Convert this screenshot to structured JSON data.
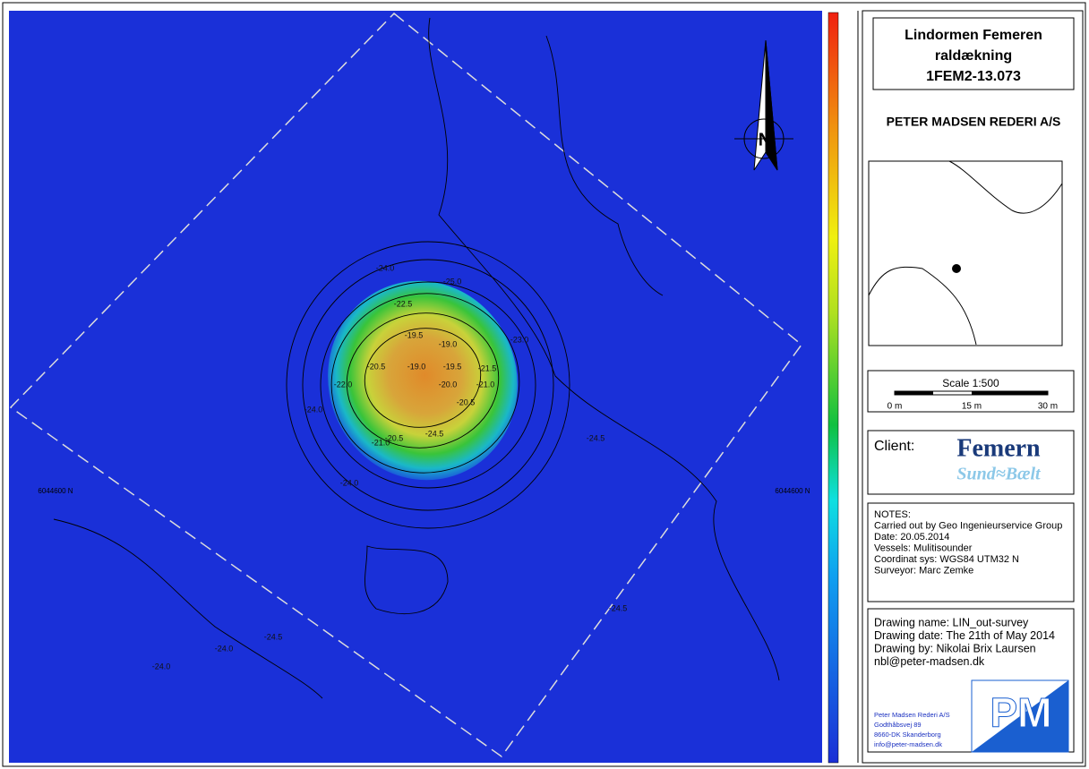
{
  "title": {
    "lines": [
      "Lindormen Femeren",
      "raldækning",
      "1FEM2-13.073"
    ]
  },
  "company": "PETER MADSEN REDERI A/S",
  "scale": {
    "label": "Scale 1:500",
    "ticks": [
      "0 m",
      "15 m",
      "30 m"
    ]
  },
  "client": {
    "label": "Client:",
    "logo_top": "Femern",
    "logo_bottom": "Sund≈Bælt"
  },
  "notes": [
    "NOTES:",
    "Carried out by Geo Ingenieurservice Group",
    "Date: 20.05.2014",
    "Vessels: Mulitisounder",
    "Coordinat sys: WGS84 UTM32 N",
    "Surveyor: Marc Zemke"
  ],
  "drawing": [
    "Drawing name: LIN_out-survey",
    "Drawing date: The 21th of May 2014",
    "Drawing by: Nikolai Brix Laursen",
    "nbl@peter-madsen.dk"
  ],
  "address": [
    "Peter Madsen Rederi A/S",
    "Godthåbsvej 89",
    "8660-DK Skanderborg",
    "info@peter-madsen.dk"
  ],
  "logo": "PM",
  "map": {
    "north": "N",
    "grid_labels": [
      "6044600 N",
      "6044600 N"
    ],
    "contour_labels": [
      "-19.0",
      "-19.5",
      "-19.0",
      "-19.5",
      "-20.0",
      "-20.5",
      "-20.5",
      "-21.0",
      "-21.5",
      "-22.5",
      "-23.0",
      "-24.0",
      "-24.5",
      "-25.0",
      "-21.0",
      "-20.5",
      "-22.0",
      "-24.0",
      "-24.5",
      "-24.0",
      "-24.5",
      "-24.0",
      "-24.5",
      "-24.0"
    ]
  }
}
